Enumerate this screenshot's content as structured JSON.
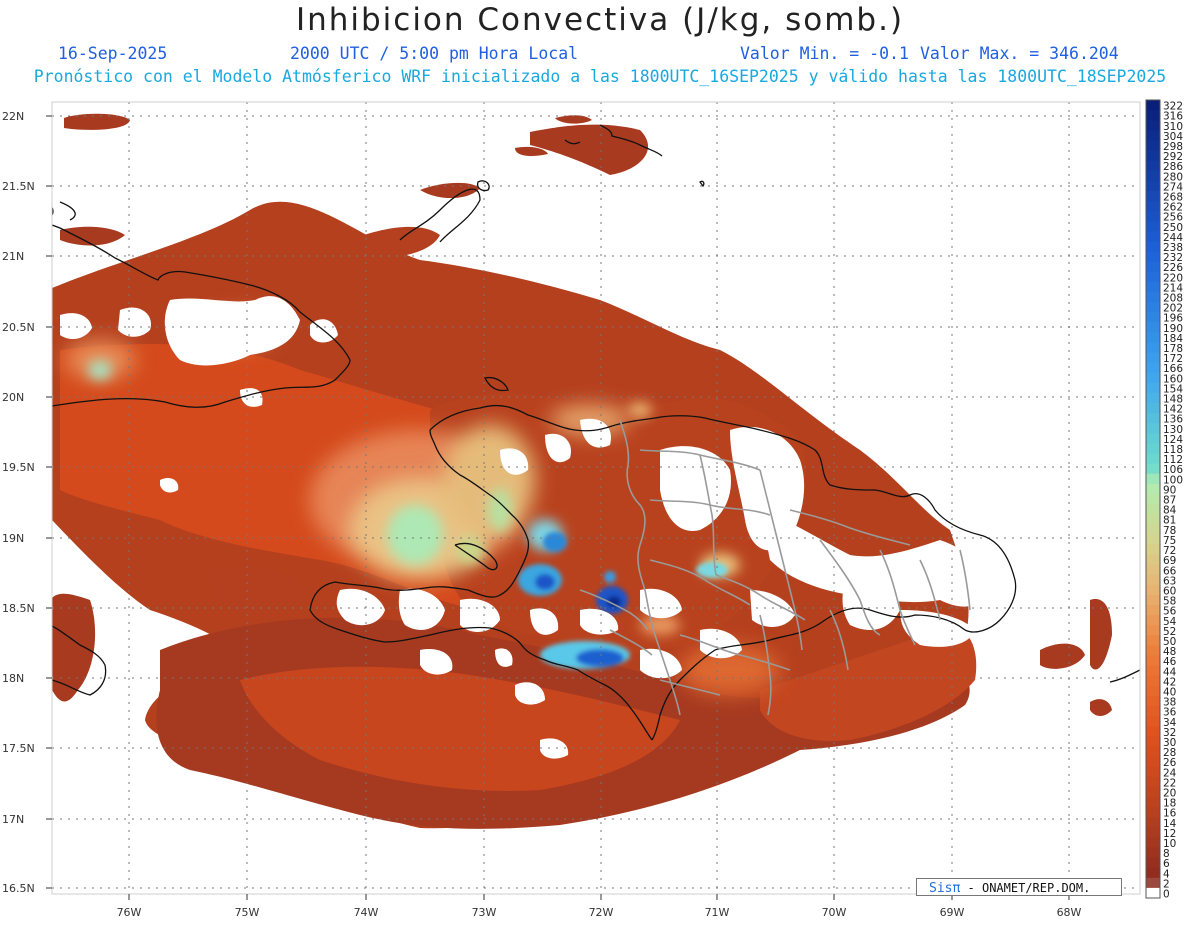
{
  "header": {
    "title": "Inhibicion Convectiva (J/kg, somb.)",
    "date": "16-Sep-2025",
    "time": "2000 UTC / 5:00 pm Hora Local",
    "valmin": "Valor Min. = -0.1",
    "valmax": "Valor Max. = 346.204",
    "forecast": "Pronóstico con el Modelo Atmósferico WRF inicializado a las 1800UTC_16SEP2025 y válido hasta las  1800UTC_18SEP2025"
  },
  "map": {
    "lat_labels": [
      "22N",
      "21.5N",
      "21N",
      "20.5N",
      "20N",
      "19.5N",
      "19N",
      "18.5N",
      "18N",
      "17.5N",
      "17N",
      "16.5N"
    ],
    "lon_labels": [
      "76W",
      "75W",
      "74W",
      "73W",
      "72W",
      "71W",
      "70W",
      "69W",
      "68W"
    ]
  },
  "colorbar": {
    "labels": [
      "322",
      "316",
      "310",
      "304",
      "298",
      "292",
      "286",
      "280",
      "274",
      "268",
      "262",
      "256",
      "250",
      "244",
      "238",
      "232",
      "226",
      "220",
      "214",
      "208",
      "202",
      "196",
      "190",
      "184",
      "178",
      "172",
      "166",
      "160",
      "154",
      "148",
      "142",
      "136",
      "130",
      "124",
      "118",
      "112",
      "106",
      "100",
      "90",
      "87",
      "84",
      "81",
      "78",
      "75",
      "72",
      "69",
      "66",
      "63",
      "60",
      "58",
      "56",
      "54",
      "52",
      "50",
      "48",
      "46",
      "44",
      "42",
      "40",
      "38",
      "36",
      "34",
      "32",
      "30",
      "28",
      "26",
      "24",
      "22",
      "20",
      "18",
      "16",
      "14",
      "12",
      "10",
      "8",
      "6",
      "4",
      "2",
      "0"
    ]
  },
  "credit": {
    "brand": "Sisπ",
    "text": " - ONAMET/REP.DOM."
  },
  "colors": {
    "ocean_base": "#b43a1c",
    "dark": "#8a2a1e",
    "orange": "#e2561e",
    "yellow": "#e8c98a",
    "green": "#a8e8b0",
    "cyan": "#6fd0e8",
    "blue": "#1a55c8",
    "navy": "#0a2a8a"
  }
}
